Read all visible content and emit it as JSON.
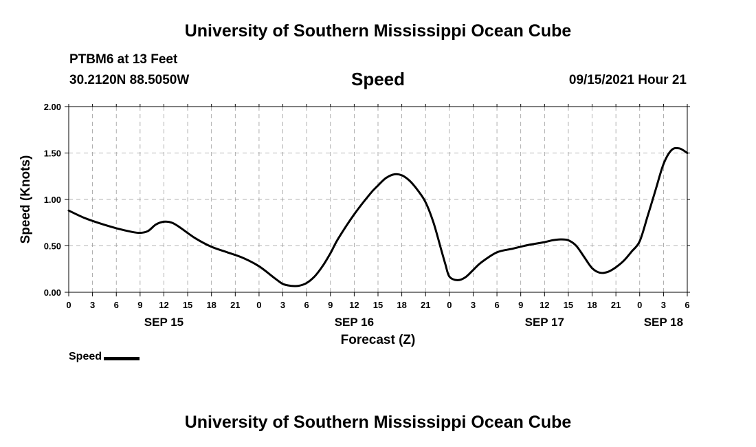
{
  "header": {
    "institution": "University of Southern Mississippi Ocean Cube",
    "station": "PTBM6 at 13 Feet",
    "coordinates": "30.2120N  88.5050W",
    "chart_title": "Speed",
    "datetime": "09/15/2021 Hour 21"
  },
  "footer": {
    "institution": "University of Southern Mississippi Ocean Cube"
  },
  "legend": {
    "label": "Speed"
  },
  "chart_data": {
    "type": "line",
    "title": "Speed",
    "xlabel": "Forecast (Z)",
    "ylabel": "Speed (Knots)",
    "x_unit": "hours from SEP 15 00Z",
    "xlim": [
      0,
      78
    ],
    "ylim": [
      0,
      2.0
    ],
    "grid": true,
    "legend_position": "bottom-left",
    "y_ticks": [
      "0.00",
      "0.50",
      "1.00",
      "1.50",
      "2.00"
    ],
    "y_tick_values": [
      0,
      0.5,
      1.0,
      1.5,
      2.0
    ],
    "x_ticks": [
      {
        "x": 0,
        "label": "0"
      },
      {
        "x": 3,
        "label": "3"
      },
      {
        "x": 6,
        "label": "6"
      },
      {
        "x": 9,
        "label": "9"
      },
      {
        "x": 12,
        "label": "12"
      },
      {
        "x": 15,
        "label": "15"
      },
      {
        "x": 18,
        "label": "18"
      },
      {
        "x": 21,
        "label": "21"
      },
      {
        "x": 24,
        "label": "0"
      },
      {
        "x": 27,
        "label": "3"
      },
      {
        "x": 30,
        "label": "6"
      },
      {
        "x": 33,
        "label": "9"
      },
      {
        "x": 36,
        "label": "12"
      },
      {
        "x": 39,
        "label": "15"
      },
      {
        "x": 42,
        "label": "18"
      },
      {
        "x": 45,
        "label": "21"
      },
      {
        "x": 48,
        "label": "0"
      },
      {
        "x": 51,
        "label": "3"
      },
      {
        "x": 54,
        "label": "6"
      },
      {
        "x": 57,
        "label": "9"
      },
      {
        "x": 60,
        "label": "12"
      },
      {
        "x": 63,
        "label": "15"
      },
      {
        "x": 66,
        "label": "18"
      },
      {
        "x": 69,
        "label": "21"
      },
      {
        "x": 72,
        "label": "0"
      },
      {
        "x": 75,
        "label": "3"
      },
      {
        "x": 78,
        "label": "6"
      }
    ],
    "day_labels": [
      {
        "x": 12,
        "label": "SEP 15"
      },
      {
        "x": 36,
        "label": "SEP 16"
      },
      {
        "x": 60,
        "label": "SEP 17"
      },
      {
        "x": 75,
        "label": "SEP 18"
      }
    ],
    "series": [
      {
        "name": "Speed",
        "color": "#000000",
        "x": [
          0,
          2,
          4,
          6,
          8,
          9,
          10,
          11,
          12,
          13,
          14,
          16,
          18,
          20,
          22,
          24,
          26,
          27,
          28,
          29,
          30,
          31,
          32,
          33,
          34,
          36,
          38,
          39,
          40,
          41,
          42,
          43,
          44,
          45,
          46,
          47,
          47.5,
          48,
          49,
          50,
          51,
          52,
          54,
          56,
          58,
          60,
          61,
          62,
          63,
          64,
          65,
          66,
          67,
          68,
          69,
          70,
          71,
          72,
          73,
          74,
          75,
          76,
          77,
          78
        ],
        "y": [
          0.88,
          0.8,
          0.74,
          0.69,
          0.65,
          0.64,
          0.66,
          0.73,
          0.76,
          0.75,
          0.7,
          0.58,
          0.49,
          0.43,
          0.37,
          0.28,
          0.15,
          0.09,
          0.07,
          0.07,
          0.1,
          0.17,
          0.28,
          0.42,
          0.58,
          0.84,
          1.06,
          1.15,
          1.23,
          1.27,
          1.26,
          1.2,
          1.1,
          0.97,
          0.75,
          0.45,
          0.3,
          0.17,
          0.13,
          0.16,
          0.24,
          0.32,
          0.43,
          0.47,
          0.51,
          0.54,
          0.56,
          0.57,
          0.56,
          0.5,
          0.38,
          0.26,
          0.21,
          0.22,
          0.27,
          0.34,
          0.44,
          0.55,
          0.82,
          1.1,
          1.38,
          1.53,
          1.55,
          1.5
        ]
      }
    ]
  }
}
